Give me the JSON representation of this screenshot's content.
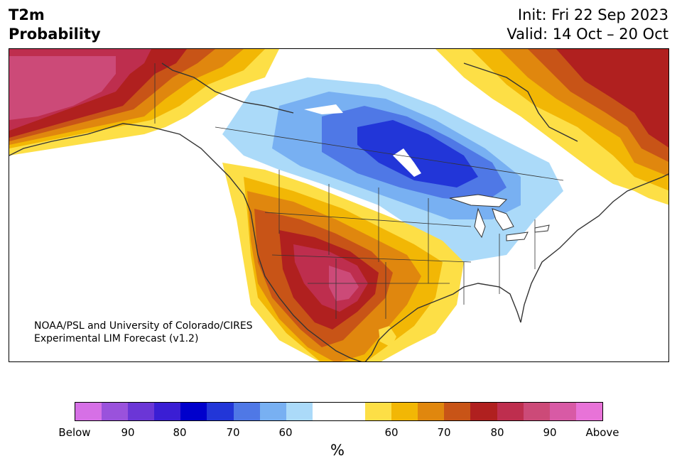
{
  "title": {
    "line1": "T2m",
    "line2": "Probability"
  },
  "dates": {
    "init": "Init: Fri 22 Sep 2023",
    "valid": "Valid: 14 Oct – 20 Oct"
  },
  "credit": {
    "line1": "NOAA/PSL and University of Colorado/CIRES",
    "line2": "Experimental LIM Forecast (v1.2)"
  },
  "legend": {
    "colors": [
      "#d670e6",
      "#9a52dc",
      "#6b36d6",
      "#3a1ed4",
      "#0000cc",
      "#2236d8",
      "#4f78e6",
      "#78b0f2",
      "#abdaf9",
      "#ffffff",
      "#ffffff",
      "#fddf46",
      "#f2b705",
      "#e0870e",
      "#c85417",
      "#b0201f",
      "#be2e4e",
      "#cc4a78",
      "#d85aa5",
      "#e873d8"
    ],
    "tick_labels": [
      "Below",
      "90",
      "80",
      "70",
      "60",
      "60",
      "70",
      "80",
      "90",
      "Above"
    ],
    "unit": "%"
  },
  "map_colors": {
    "land": "#ffffff",
    "ocean": "#ffffff",
    "borders": "#333333"
  }
}
